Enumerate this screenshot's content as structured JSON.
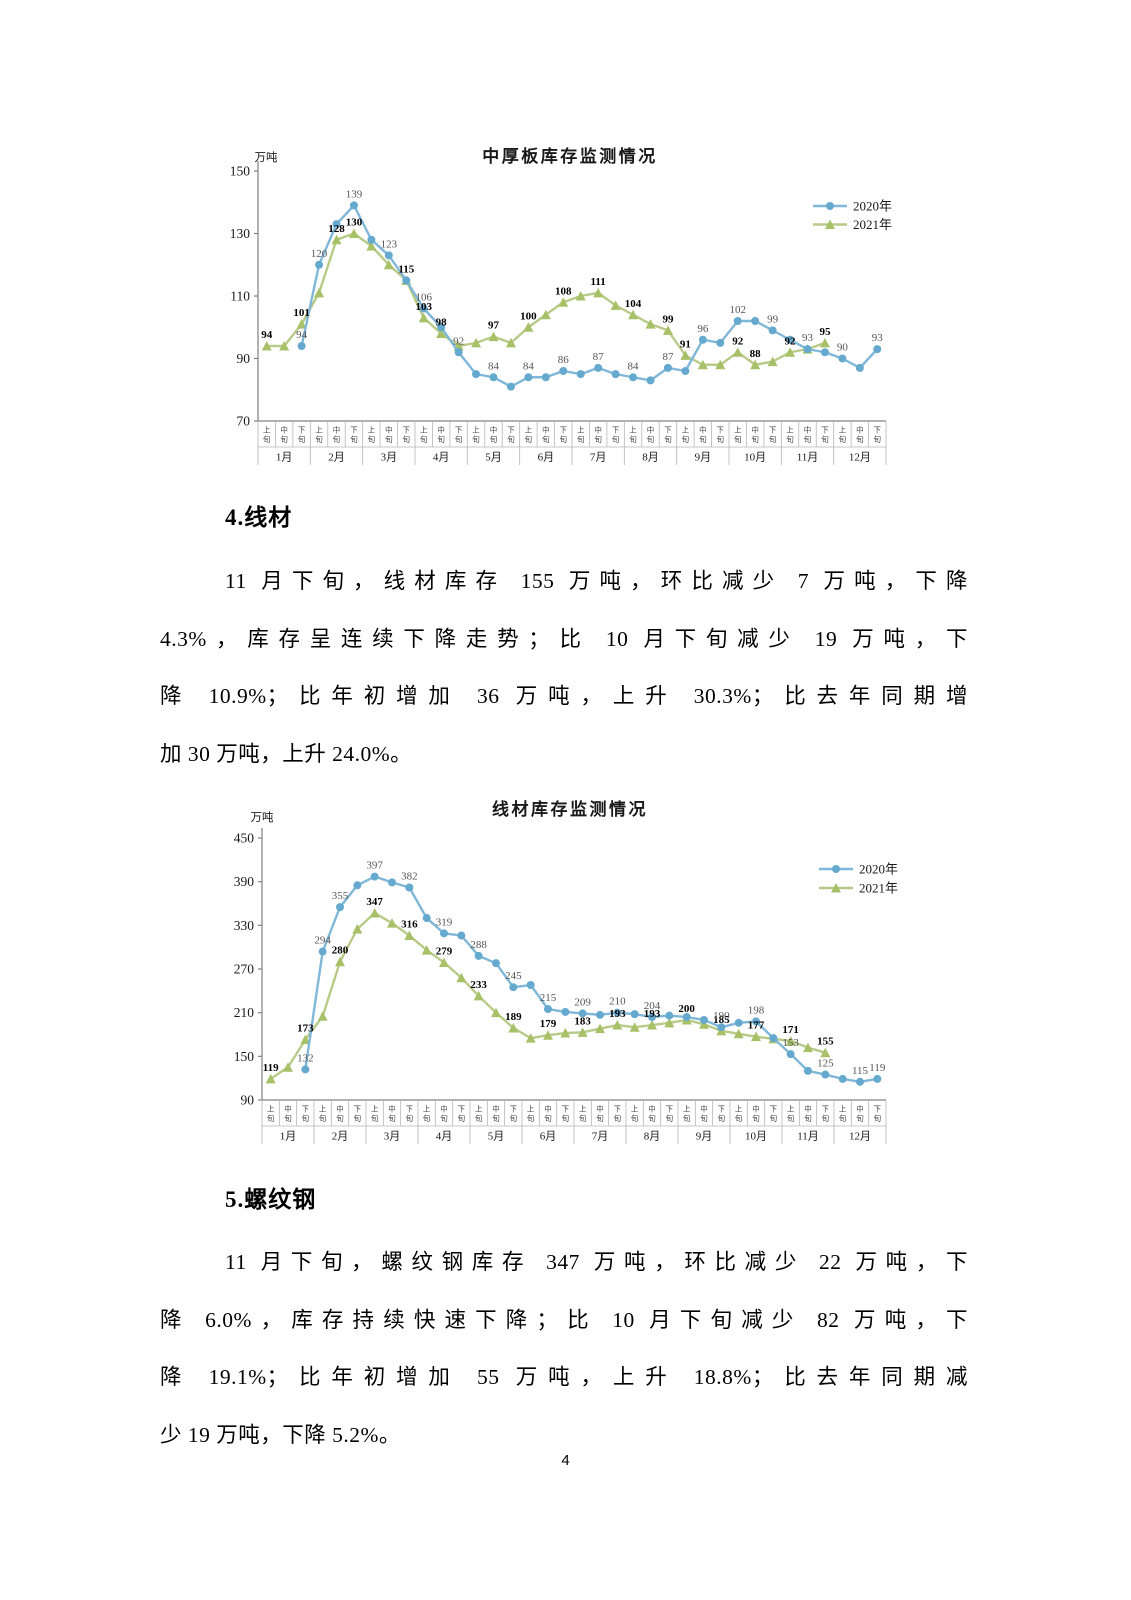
{
  "page": {
    "number": "4"
  },
  "sections": [
    {
      "heading": "4.线材",
      "para_lines": [
        "11 月下旬，线材库存 155 万吨，环比减少 7 万吨，下降",
        "4.3%，库存呈连续下降走势；比 10 月下旬减少 19 万吨，下",
        "降 10.9%；比年初增加 36 万吨，上升 30.3%；比去年同期增",
        "加 30 万吨，上升 24.0%。"
      ]
    },
    {
      "heading": "5.螺纹钢",
      "para_lines": [
        "11 月下旬，螺纹钢库存 347 万吨，环比减少 22 万吨，下",
        "降 6.0%，库存持续快速下降；比 10 月下旬减少 82 万吨，下",
        "降 19.1%；比年初增加 55 万吨，上升 18.8%；比去年同期减",
        "少 19 万吨，下降 5.2%。"
      ]
    }
  ],
  "chart_data": [
    {
      "type": "line",
      "title": "中厚板库存监测情况",
      "unit": "万吨",
      "ylim": [
        70,
        150
      ],
      "yticks": [
        70,
        90,
        110,
        130,
        150
      ],
      "months": [
        "1月",
        "2月",
        "3月",
        "4月",
        "5月",
        "6月",
        "7月",
        "8月",
        "9月",
        "10月",
        "11月",
        "12月"
      ],
      "periods": [
        "上旬",
        "中旬",
        "下旬"
      ],
      "legend_position": "top-right",
      "series": [
        {
          "name": "2021年",
          "color": "#b8ca87",
          "marker_color": "#a6c167",
          "marker": "triangle",
          "label_color": "#000000",
          "label_bold": true,
          "start_slot": 0,
          "values": [
            94,
            94,
            101,
            111,
            128,
            130,
            126,
            120,
            115,
            103,
            98,
            94,
            95,
            97,
            95,
            100,
            104,
            108,
            110,
            111,
            107,
            104,
            101,
            99,
            91,
            88,
            88,
            92,
            88,
            89,
            92,
            93,
            95
          ],
          "labels": {
            "0": 94,
            "2": 101,
            "4": 128,
            "5": 130,
            "8": 115,
            "9": 103,
            "10": 98,
            "13": 97,
            "15": 100,
            "17": 108,
            "19": 111,
            "21": 104,
            "23": 99,
            "24": 91,
            "27": 92,
            "28": 88,
            "30": 92,
            "32": 95
          }
        },
        {
          "name": "2020年",
          "color": "#7fb7d8",
          "marker_color": "#66a9cf",
          "marker": "circle",
          "label_color": "#555555",
          "label_bold": false,
          "start_slot": 2,
          "values": [
            94,
            120,
            133,
            139,
            128,
            123,
            115,
            106,
            100,
            92,
            85,
            84,
            81,
            84,
            84,
            86,
            85,
            87,
            85,
            84,
            83,
            87,
            86,
            96,
            95,
            102,
            102,
            99,
            96,
            93,
            92,
            90,
            87,
            93
          ],
          "labels": {
            "2": 94,
            "3": 120,
            "5": 139,
            "7": 123,
            "9": 106,
            "11": 92,
            "13": 84,
            "15": 84,
            "17": 86,
            "19": 87,
            "21": 84,
            "23": 87,
            "25": 96,
            "27": 102,
            "29": 99,
            "31": 93,
            "33": 90,
            "35": 93
          }
        }
      ]
    },
    {
      "type": "line",
      "title": "线材库存监测情况",
      "unit": "万吨",
      "ylim": [
        90,
        450
      ],
      "yticks": [
        90,
        150,
        210,
        270,
        330,
        390,
        450
      ],
      "months": [
        "1月",
        "2月",
        "3月",
        "4月",
        "5月",
        "6月",
        "7月",
        "8月",
        "9月",
        "10月",
        "11月",
        "12月"
      ],
      "periods": [
        "上旬",
        "中旬",
        "下旬"
      ],
      "legend_position": "top-right",
      "series": [
        {
          "name": "2021年",
          "color": "#b8ca87",
          "marker_color": "#a6c167",
          "marker": "triangle",
          "label_color": "#000000",
          "label_bold": true,
          "start_slot": 0,
          "values": [
            119,
            135,
            173,
            205,
            280,
            325,
            347,
            333,
            316,
            296,
            279,
            258,
            233,
            210,
            189,
            175,
            179,
            182,
            183,
            188,
            193,
            190,
            193,
            196,
            200,
            194,
            185,
            181,
            177,
            174,
            171,
            162,
            155
          ],
          "labels": {
            "0": 119,
            "2": 173,
            "4": 280,
            "6": 347,
            "8": 316,
            "10": 279,
            "12": 233,
            "14": 189,
            "16": 179,
            "18": 183,
            "20": 193,
            "22": 193,
            "24": 200,
            "26": 185,
            "28": 177,
            "30": 171,
            "32": 155
          }
        },
        {
          "name": "2020年",
          "color": "#7fb7d8",
          "marker_color": "#66a9cf",
          "marker": "circle",
          "label_color": "#555555",
          "label_bold": false,
          "start_slot": 2,
          "values": [
            132,
            294,
            355,
            385,
            397,
            389,
            382,
            340,
            319,
            316,
            288,
            278,
            245,
            248,
            215,
            211,
            209,
            207,
            210,
            208,
            204,
            206,
            204,
            200,
            190,
            196,
            198,
            175,
            153,
            130,
            125,
            119,
            115,
            119
          ],
          "labels": {
            "2": 132,
            "3": 294,
            "4": 355,
            "6": 397,
            "8": 382,
            "10": 319,
            "12": 288,
            "14": 245,
            "16": 215,
            "18": 209,
            "20": 210,
            "22": 204,
            "26": 190,
            "28": 198,
            "30": 153,
            "32": 125,
            "34": 115,
            "35": 119
          }
        }
      ]
    }
  ]
}
